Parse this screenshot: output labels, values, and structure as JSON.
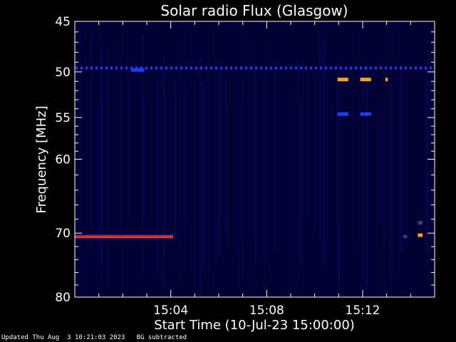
{
  "chart_data": {
    "type": "heatmap",
    "title": "Solar radio Flux (Glasgow)",
    "xlabel": "Start Time (10-Jul-23 15:00:00)",
    "ylabel": "Frequency [MHz]",
    "x_unit": "minutes after 15:00",
    "xlim": [
      0.0,
      15.0
    ],
    "x_ticks": [
      {
        "value": 4,
        "label": "15:04"
      },
      {
        "value": 8,
        "label": "15:08"
      },
      {
        "value": 12,
        "label": "15:12"
      }
    ],
    "ylim": [
      45,
      80
    ],
    "y_scale": "log",
    "y_tick_labels": [
      45,
      50,
      55,
      60,
      70,
      80
    ],
    "background_color": "#000033",
    "colors": {
      "low": "#1a1aa0",
      "blue": "#1e3cff",
      "purple": "#6020a0",
      "red": "#e03030",
      "orange": "#ffa020"
    },
    "features": [
      {
        "name": "50 MHz dashed interference",
        "freq": 49.6,
        "t_start": 0.0,
        "t_end": 15.0,
        "level": "blue",
        "dashed": true
      },
      {
        "name": "50 MHz segment",
        "freq": 49.8,
        "t_start": 2.35,
        "t_end": 2.9,
        "level": "blue"
      },
      {
        "name": "burst 51 MHz a",
        "freq": 50.8,
        "t_start": 10.95,
        "t_end": 11.4,
        "level": "orange"
      },
      {
        "name": "burst 51 MHz b",
        "freq": 50.8,
        "t_start": 11.9,
        "t_end": 12.35,
        "level": "orange"
      },
      {
        "name": "burst 51 MHz c",
        "freq": 50.8,
        "t_start": 12.95,
        "t_end": 13.05,
        "level": "orange"
      },
      {
        "name": "echo 54.6 MHz a",
        "freq": 54.6,
        "t_start": 10.95,
        "t_end": 11.4,
        "level": "blue"
      },
      {
        "name": "echo 54.6 MHz b",
        "freq": 54.6,
        "t_start": 11.9,
        "t_end": 12.35,
        "level": "blue"
      },
      {
        "name": "70.5 MHz band",
        "freq": 70.5,
        "t_start": 0.0,
        "t_end": 4.1,
        "level": "red"
      },
      {
        "name": "70.5 MHz speck",
        "freq": 70.5,
        "t_start": 13.7,
        "t_end": 13.85,
        "level": "purple"
      },
      {
        "name": "70.3 MHz blip",
        "freq": 70.3,
        "t_start": 14.3,
        "t_end": 14.5,
        "level": "orange"
      },
      {
        "name": "68.5 MHz blip",
        "freq": 68.5,
        "t_start": 14.3,
        "t_end": 14.5,
        "level": "purple"
      }
    ]
  },
  "footer": {
    "updated": "Updated Thu Aug  3 10:21:03 2023",
    "note": "BG subtracted"
  }
}
